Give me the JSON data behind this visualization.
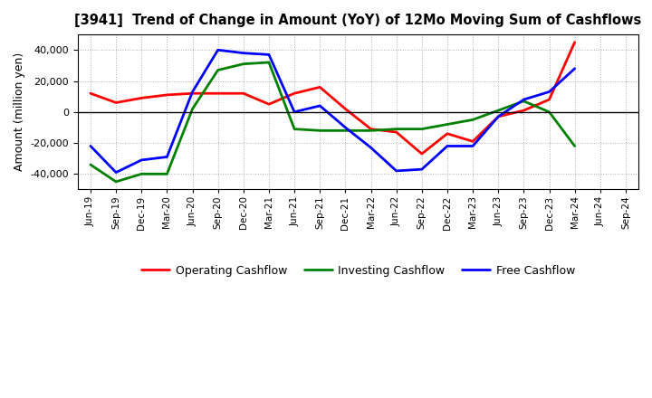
{
  "title": "[3941]  Trend of Change in Amount (YoY) of 12Mo Moving Sum of Cashflows",
  "ylabel": "Amount (million yen)",
  "xlabels": [
    "Jun-19",
    "Sep-19",
    "Dec-19",
    "Mar-20",
    "Jun-20",
    "Sep-20",
    "Dec-20",
    "Mar-21",
    "Jun-21",
    "Sep-21",
    "Dec-21",
    "Mar-22",
    "Jun-22",
    "Sep-22",
    "Dec-22",
    "Mar-23",
    "Jun-23",
    "Sep-23",
    "Dec-23",
    "Mar-24",
    "Jun-24",
    "Sep-24"
  ],
  "operating": [
    12000,
    6000,
    9000,
    11000,
    12000,
    12000,
    12000,
    5000,
    12000,
    16000,
    2000,
    -11000,
    -13000,
    -27000,
    -14000,
    -19000,
    -3000,
    1000,
    8000,
    45000,
    null,
    null
  ],
  "investing": [
    -34000,
    -45000,
    -40000,
    -40000,
    2000,
    27000,
    31000,
    32000,
    -11000,
    -12000,
    -12000,
    -12000,
    -11000,
    -11000,
    -8000,
    -5000,
    1000,
    7000,
    0,
    -22000,
    null,
    null
  ],
  "free": [
    -22000,
    -39000,
    -31000,
    -29000,
    13000,
    40000,
    38000,
    37000,
    0,
    4000,
    -10000,
    -23000,
    -38000,
    -37000,
    -22000,
    -22000,
    -3000,
    8000,
    13000,
    28000,
    null,
    null
  ],
  "operating_color": "#FF0000",
  "investing_color": "#008000",
  "free_color": "#0000FF",
  "ylim": [
    -50000,
    50000
  ],
  "yticks": [
    -40000,
    -20000,
    0,
    20000,
    40000
  ],
  "background_color": "#FFFFFF",
  "grid_color": "#999999",
  "legend_labels": [
    "Operating Cashflow",
    "Investing Cashflow",
    "Free Cashflow"
  ]
}
